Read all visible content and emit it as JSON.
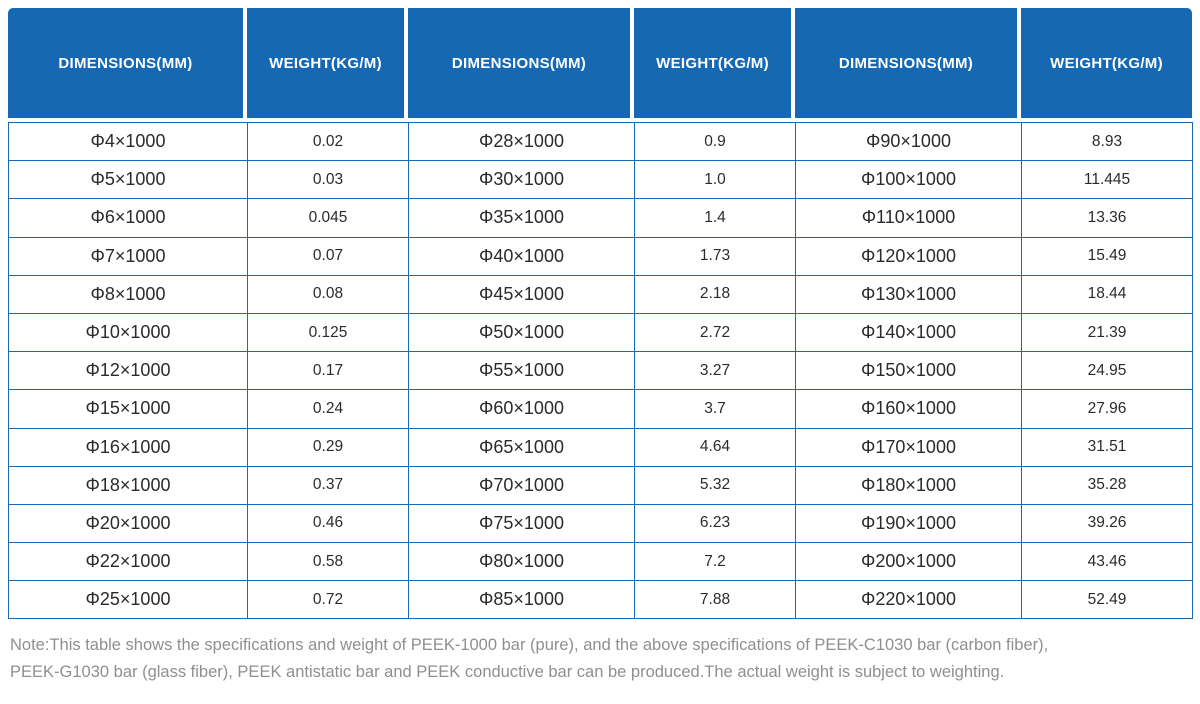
{
  "colors": {
    "header_bg": "#1668b2",
    "table_border": "#1668b2",
    "header_text": "#ffffff",
    "body_text": "#2b2b2b",
    "note_text": "#8f8f8f"
  },
  "table": {
    "columns": [
      "DIMENSIONS(MM)",
      "WEIGHT(KG/M)",
      "DIMENSIONS(MM)",
      "WEIGHT(KG/M)",
      "DIMENSIONS(MM)",
      "WEIGHT(KG/M)"
    ],
    "rows": [
      [
        "Φ4×1000",
        "0.02",
        "Φ28×1000",
        "0.9",
        "Φ90×1000",
        "8.93"
      ],
      [
        "Φ5×1000",
        "0.03",
        "Φ30×1000",
        "1.0",
        "Φ100×1000",
        "11.445"
      ],
      [
        "Φ6×1000",
        "0.045",
        "Φ35×1000",
        "1.4",
        "Φ110×1000",
        "13.36"
      ],
      [
        "Φ7×1000",
        "0.07",
        "Φ40×1000",
        "1.73",
        "Φ120×1000",
        "15.49"
      ],
      [
        "Φ8×1000",
        "0.08",
        "Φ45×1000",
        "2.18",
        "Φ130×1000",
        "18.44"
      ],
      [
        "Φ10×1000",
        "0.125",
        "Φ50×1000",
        "2.72",
        "Φ140×1000",
        "21.39"
      ],
      [
        "Φ12×1000",
        "0.17",
        "Φ55×1000",
        "3.27",
        "Φ150×1000",
        "24.95"
      ],
      [
        "Φ15×1000",
        "0.24",
        "Φ60×1000",
        "3.7",
        "Φ160×1000",
        "27.96"
      ],
      [
        "Φ16×1000",
        "0.29",
        "Φ65×1000",
        "4.64",
        "Φ170×1000",
        "31.51"
      ],
      [
        "Φ18×1000",
        "0.37",
        "Φ70×1000",
        "5.32",
        "Φ180×1000",
        "35.28"
      ],
      [
        "Φ20×1000",
        "0.46",
        "Φ75×1000",
        "6.23",
        "Φ190×1000",
        "39.26"
      ],
      [
        "Φ22×1000",
        "0.58",
        "Φ80×1000",
        "7.2",
        "Φ200×1000",
        "43.46"
      ],
      [
        "Φ25×1000",
        "0.72",
        "Φ85×1000",
        "7.88",
        "Φ220×1000",
        "52.49"
      ]
    ]
  },
  "note": {
    "line1": "Note:This table shows the specifications and weight of PEEK-1000 bar (pure), and the above specifications of PEEK-C1030 bar (carbon fiber),",
    "line2": "PEEK-G1030 bar (glass fiber), PEEK antistatic bar and PEEK conductive bar can be produced.The actual weight is subject to weighting."
  }
}
